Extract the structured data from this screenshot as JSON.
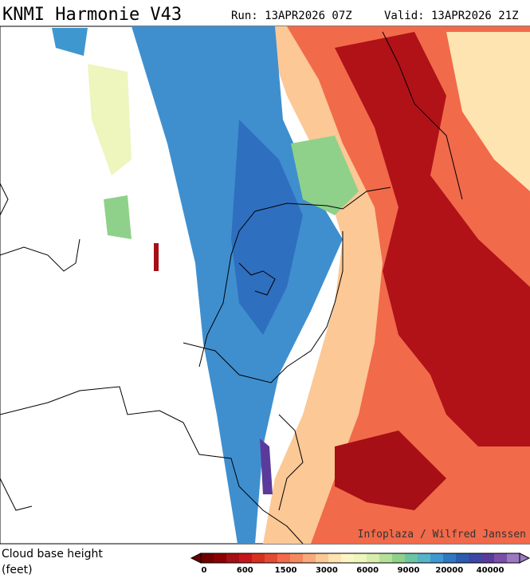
{
  "header": {
    "title": "KNMI Harmonie V43",
    "run": "Run: 13APR2026 07Z",
    "valid": "Valid: 13APR2026 21Z"
  },
  "map": {
    "credit": "Infoplaza / Wilfred Janssen"
  },
  "legend": {
    "title": "Cloud base height",
    "unit": "(feet)",
    "ticks": [
      "0",
      "600",
      "1500",
      "3000",
      "6000",
      "9000",
      "20000",
      "40000"
    ],
    "colors": [
      "#6e0000",
      "#8b0000",
      "#a50f15",
      "#c4161c",
      "#d7301f",
      "#e34a33",
      "#f16a4a",
      "#f4895f",
      "#f8aa7a",
      "#fbc896",
      "#fde4b0",
      "#fdf5c6",
      "#eef5bd",
      "#d6edab",
      "#b5e09a",
      "#8fd18a",
      "#6bc4a4",
      "#56b4c7",
      "#3f97cf",
      "#2f78c0",
      "#2a5db0",
      "#3d47a3",
      "#5a3b9b",
      "#7b4fa8",
      "#9b7ac0"
    ]
  }
}
